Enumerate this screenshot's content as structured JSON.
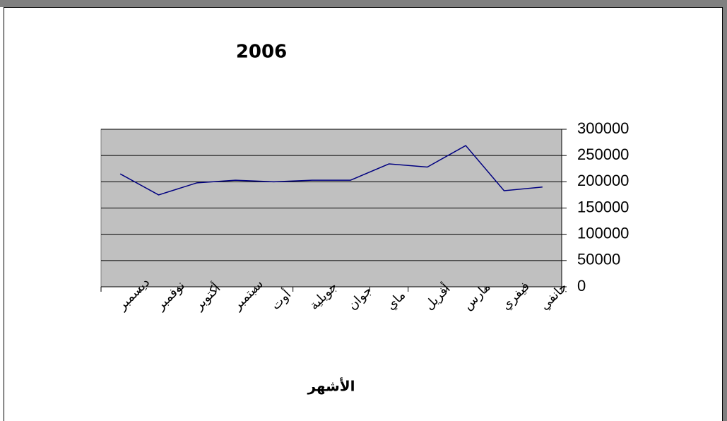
{
  "chart_data": {
    "type": "line",
    "title": "2006",
    "x_label": "الأشهر",
    "categories": [
      "ديسمبر",
      "نوفمبر",
      "أكتوبر",
      "سبتمبر",
      "أوت",
      "جويلية",
      "جوان",
      "ماي",
      "أفريل",
      "مارس",
      "فيفري",
      "جانفي"
    ],
    "series": [
      {
        "color": "#000080",
        "values": [
          215000,
          175000,
          198000,
          203000,
          200000,
          203000,
          203000,
          234000,
          228000,
          269000,
          183000,
          190000
        ]
      }
    ],
    "ylim": [
      0,
      300000
    ],
    "yticks": [
      0,
      50000,
      100000,
      150000,
      200000,
      250000,
      300000
    ],
    "y_axis_side": "right",
    "grid": true,
    "plot_background": "#c0c0c0"
  }
}
